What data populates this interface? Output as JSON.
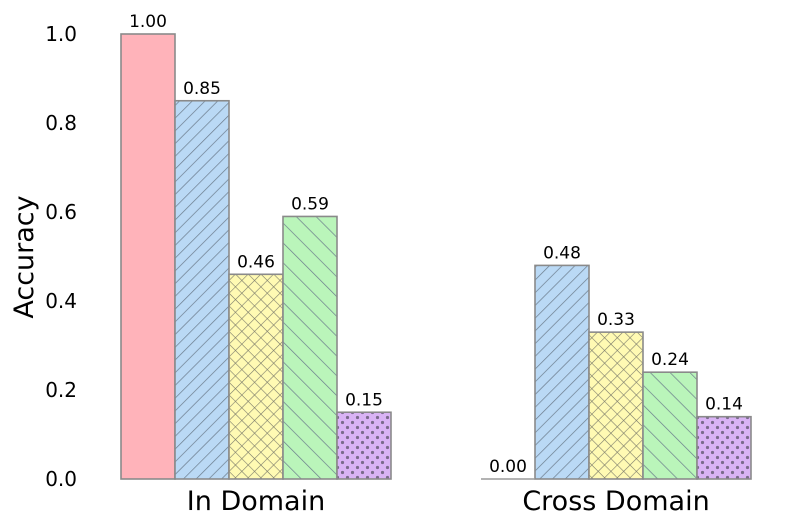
{
  "chart_data": {
    "type": "bar",
    "ylabel": "Accuracy",
    "ylim": [
      0,
      1.0
    ],
    "yticks": [
      "0.0",
      "0.2",
      "0.4",
      "0.6",
      "0.8",
      "1.0"
    ],
    "categories": [
      "In Domain",
      "Cross Domain"
    ],
    "series": [
      {
        "values": [
          1.0,
          0.0
        ],
        "labels": [
          "1.00",
          "0.00"
        ],
        "color": "#ffb3ba",
        "pattern": "none"
      },
      {
        "values": [
          0.85,
          0.48
        ],
        "labels": [
          "0.85",
          "0.48"
        ],
        "color": "#bad9f5",
        "pattern": "diag-fwd"
      },
      {
        "values": [
          0.46,
          0.33
        ],
        "labels": [
          "0.46",
          "0.33"
        ],
        "color": "#fffab3",
        "pattern": "crosshatch"
      },
      {
        "values": [
          0.59,
          0.24
        ],
        "labels": [
          "0.59",
          "0.24"
        ],
        "color": "#baf5ba",
        "pattern": "diag-back"
      },
      {
        "values": [
          0.15,
          0.14
        ],
        "labels": [
          "0.15",
          "0.14"
        ],
        "color": "#d9b3f5",
        "pattern": "dots"
      }
    ],
    "grid": false,
    "legend": "none"
  }
}
